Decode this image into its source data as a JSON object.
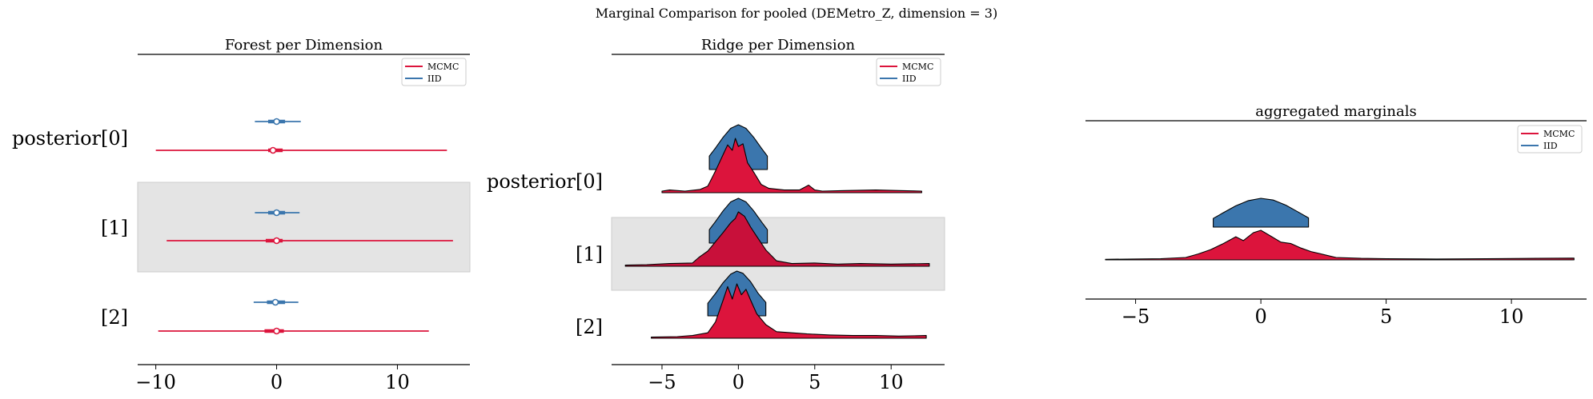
{
  "figure": {
    "suptitle": "Marginal Comparison for pooled (DEMetro_Z, dimension = 3)"
  },
  "colors": {
    "mcmc": "#dc143c",
    "iid": "#3b76ad",
    "band": "#e4e4e4"
  },
  "chart_data": [
    {
      "type": "forest",
      "title": "Forest per Dimension",
      "xlim": [
        -11.5,
        16
      ],
      "xticks": [
        -10,
        0,
        10
      ],
      "xtick_labels": [
        "−10",
        "0",
        "10"
      ],
      "rows": [
        "posterior[0]",
        "[1]",
        "[2]"
      ],
      "shaded_rows": [
        1
      ],
      "legend": {
        "position": "top-right",
        "entries": [
          "MCMC",
          "IID"
        ]
      },
      "series": [
        {
          "name": "MCMC",
          "rows": [
            {
              "median": -0.3,
              "q25": -0.7,
              "q75": 0.5,
              "low": -10.0,
              "high": 14.1
            },
            {
              "median": 0.0,
              "q25": -0.9,
              "q75": 0.5,
              "low": -9.1,
              "high": 14.6
            },
            {
              "median": 0.0,
              "q25": -1.0,
              "q75": 0.6,
              "low": -9.8,
              "high": 12.6
            }
          ]
        },
        {
          "name": "IID",
          "rows": [
            {
              "median": 0.0,
              "q25": -0.7,
              "q75": 0.7,
              "low": -1.8,
              "high": 2.0
            },
            {
              "median": 0.0,
              "q25": -0.7,
              "q75": 0.7,
              "low": -1.8,
              "high": 1.9
            },
            {
              "median": -0.1,
              "q25": -0.8,
              "q75": 0.7,
              "low": -1.9,
              "high": 1.8
            }
          ]
        }
      ]
    },
    {
      "type": "ridgeline",
      "title": "Ridge per Dimension",
      "xlim": [
        -8.3,
        13.5
      ],
      "xticks": [
        -5,
        0,
        5,
        10
      ],
      "xtick_labels": [
        "−5",
        "0",
        "5",
        "10"
      ],
      "rows": [
        "posterior[0]",
        "[1]",
        "[2]"
      ],
      "shaded_rows": [
        1
      ],
      "legend": {
        "position": "top-right",
        "entries": [
          "MCMC",
          "IID"
        ]
      },
      "series": [
        {
          "name": "IID",
          "rows": [
            {
              "x": [
                -1.9,
                -1.5,
                -1.0,
                -0.5,
                0.0,
                0.5,
                1.0,
                1.5,
                1.9
              ],
              "y": [
                0.3,
                0.48,
                0.72,
                0.92,
                1.0,
                0.92,
                0.72,
                0.48,
                0.3
              ]
            },
            {
              "x": [
                -1.9,
                -1.5,
                -1.0,
                -0.5,
                0.0,
                0.5,
                1.0,
                1.5,
                1.9
              ],
              "y": [
                0.3,
                0.48,
                0.72,
                0.92,
                1.0,
                0.92,
                0.72,
                0.48,
                0.3
              ]
            },
            {
              "x": [
                -2.0,
                -1.5,
                -1.0,
                -0.5,
                -0.1,
                0.3,
                0.8,
                1.3,
                1.8
              ],
              "y": [
                0.28,
                0.5,
                0.74,
                0.93,
                1.0,
                0.95,
                0.76,
                0.5,
                0.3
              ]
            }
          ]
        },
        {
          "name": "MCMC",
          "rows": [
            {
              "x": [
                -5.0,
                -4.5,
                -3.5,
                -2.5,
                -2.0,
                -1.5,
                -1.0,
                -0.7,
                -0.4,
                -0.2,
                0.0,
                0.3,
                0.6,
                1.0,
                1.5,
                2.0,
                3.0,
                4.0,
                4.6,
                5.0,
                5.5,
                7.0,
                9.0,
                10.5,
                12.0
              ],
              "y": [
                0.03,
                0.05,
                0.03,
                0.06,
                0.12,
                0.4,
                0.7,
                0.88,
                0.78,
                1.0,
                0.85,
                0.9,
                0.55,
                0.38,
                0.15,
                0.08,
                0.05,
                0.05,
                0.14,
                0.05,
                0.03,
                0.04,
                0.05,
                0.04,
                0.03
              ]
            },
            {
              "x": [
                -7.4,
                -6.0,
                -4.5,
                -3.0,
                -2.6,
                -2.0,
                -1.5,
                -1.0,
                -0.5,
                -0.2,
                0.0,
                0.4,
                0.8,
                1.2,
                1.8,
                2.5,
                3.5,
                5.0,
                6.5,
                8.0,
                10.0,
                12.5
              ],
              "y": [
                0.02,
                0.03,
                0.05,
                0.06,
                0.16,
                0.28,
                0.45,
                0.62,
                0.8,
                0.88,
                1.0,
                0.92,
                0.72,
                0.55,
                0.3,
                0.1,
                0.05,
                0.06,
                0.04,
                0.05,
                0.04,
                0.05
              ]
            },
            {
              "x": [
                -5.7,
                -4.0,
                -3.0,
                -2.0,
                -1.5,
                -1.0,
                -0.7,
                -0.4,
                -0.1,
                0.2,
                0.5,
                0.8,
                1.2,
                1.8,
                2.5,
                3.5,
                4.5,
                6.0,
                7.5,
                9.0,
                10.5,
                12.3
              ],
              "y": [
                0.02,
                0.03,
                0.05,
                0.1,
                0.3,
                0.7,
                0.95,
                0.72,
                1.0,
                0.8,
                0.9,
                0.7,
                0.45,
                0.25,
                0.12,
                0.1,
                0.08,
                0.06,
                0.05,
                0.05,
                0.04,
                0.05
              ]
            }
          ]
        }
      ]
    },
    {
      "type": "density",
      "title": "aggregated marginals",
      "xlim": [
        -7.0,
        13.0
      ],
      "xticks": [
        -5,
        0,
        5,
        10
      ],
      "xtick_labels": [
        "−5",
        "0",
        "5",
        "10"
      ],
      "legend": {
        "position": "top-right",
        "entries": [
          "MCMC",
          "IID"
        ]
      },
      "series": [
        {
          "name": "IID",
          "x": [
            -1.9,
            -1.5,
            -1.0,
            -0.5,
            0.0,
            0.5,
            1.0,
            1.5,
            1.9
          ],
          "y": [
            0.3,
            0.5,
            0.74,
            0.92,
            1.0,
            0.94,
            0.76,
            0.52,
            0.32
          ]
        },
        {
          "name": "MCMC",
          "x": [
            -6.2,
            -4.0,
            -3.0,
            -2.5,
            -2.0,
            -1.5,
            -1.0,
            -0.7,
            -0.3,
            0.0,
            0.4,
            0.8,
            1.2,
            1.6,
            2.0,
            2.5,
            3.0,
            4.0,
            5.0,
            7.0,
            9.0,
            11.0,
            12.5
          ],
          "y": [
            0.02,
            0.04,
            0.08,
            0.2,
            0.35,
            0.55,
            0.78,
            0.65,
            0.92,
            1.0,
            0.8,
            0.6,
            0.55,
            0.4,
            0.28,
            0.18,
            0.08,
            0.05,
            0.04,
            0.03,
            0.04,
            0.05,
            0.06
          ]
        }
      ]
    }
  ]
}
